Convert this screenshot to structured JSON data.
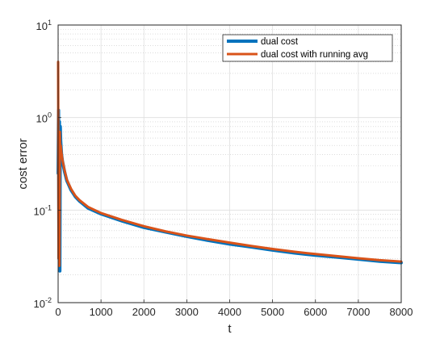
{
  "chart_data": {
    "type": "line",
    "title": "",
    "xlabel": "t",
    "ylabel": "cost error",
    "xlim": [
      0,
      8000
    ],
    "ylim": [
      0.01,
      10
    ],
    "yscale": "log",
    "grid": true,
    "minor_grid": true,
    "legend_position": "top-right",
    "x_ticks": [
      {
        "value": 0,
        "label": "0"
      },
      {
        "value": 1000,
        "label": "1000"
      },
      {
        "value": 2000,
        "label": "2000"
      },
      {
        "value": 3000,
        "label": "3000"
      },
      {
        "value": 4000,
        "label": "4000"
      },
      {
        "value": 5000,
        "label": "5000"
      },
      {
        "value": 6000,
        "label": "6000"
      },
      {
        "value": 7000,
        "label": "7000"
      },
      {
        "value": 8000,
        "label": "8000"
      }
    ],
    "y_ticks": [
      {
        "value": 0.01,
        "base": "10",
        "exp": "-2"
      },
      {
        "value": 0.1,
        "base": "10",
        "exp": "-1"
      },
      {
        "value": 1,
        "base": "10",
        "exp": "0"
      },
      {
        "value": 10,
        "base": "10",
        "exp": "1"
      }
    ],
    "series": [
      {
        "name": "dual cost",
        "color": "#0072BD",
        "x": [
          0,
          10,
          20,
          30,
          40,
          50,
          60,
          80,
          100,
          150,
          200,
          300,
          400,
          500,
          700,
          1000,
          1500,
          2000,
          2500,
          3000,
          3500,
          4000,
          4500,
          5000,
          5500,
          6000,
          6500,
          7000,
          7500,
          8000
        ],
        "y": [
          0.25,
          1.2,
          0.03,
          0.9,
          0.022,
          0.8,
          0.55,
          0.4,
          0.34,
          0.26,
          0.21,
          0.165,
          0.14,
          0.125,
          0.105,
          0.091,
          0.076,
          0.065,
          0.058,
          0.052,
          0.047,
          0.043,
          0.04,
          0.037,
          0.0345,
          0.0325,
          0.031,
          0.0295,
          0.028,
          0.027
        ]
      },
      {
        "name": "dual cost with running avg",
        "color": "#D95319",
        "x": [
          0,
          10,
          20,
          30,
          40,
          50,
          60,
          80,
          100,
          150,
          200,
          300,
          400,
          500,
          700,
          1000,
          1500,
          2000,
          2500,
          3000,
          3500,
          4000,
          4500,
          5000,
          5500,
          6000,
          6500,
          7000,
          7500,
          8000
        ],
        "y": [
          4.0,
          0.03,
          0.6,
          0.025,
          0.7,
          0.45,
          0.5,
          0.41,
          0.35,
          0.27,
          0.215,
          0.17,
          0.143,
          0.128,
          0.108,
          0.093,
          0.078,
          0.067,
          0.059,
          0.053,
          0.0485,
          0.0445,
          0.041,
          0.038,
          0.0355,
          0.0335,
          0.0318,
          0.0302,
          0.0288,
          0.0278
        ]
      }
    ]
  }
}
